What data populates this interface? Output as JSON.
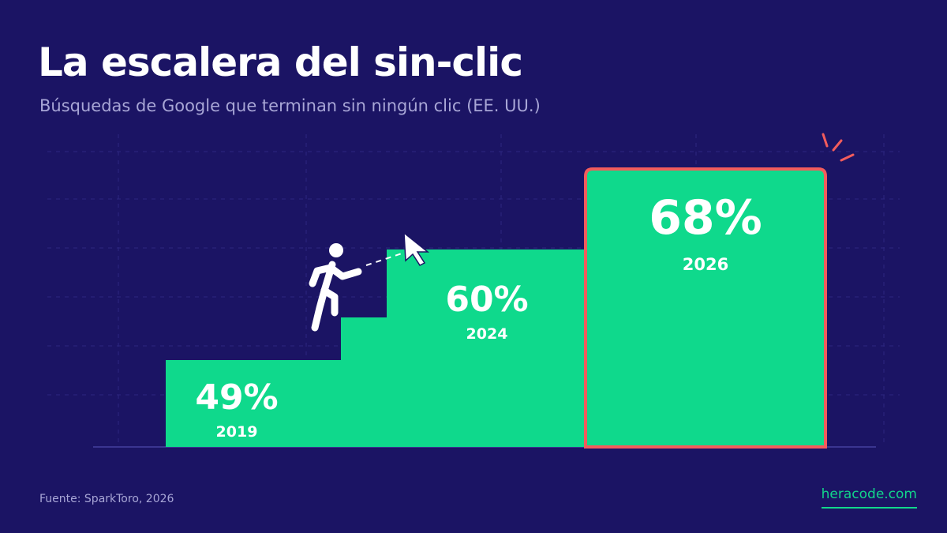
{
  "header": {
    "title": "La escalera del sin-clic",
    "subtitle": "Búsquedas de Google que terminan sin ningún clic (EE. UU.)"
  },
  "footer": {
    "source": "Fuente: SparkToro, 2026",
    "brand": "heracode.com"
  },
  "colors": {
    "background": "#1b1464",
    "bar": "#0fd98c",
    "highlight": "#f25c5c",
    "muted_text": "#a8a6d6"
  },
  "chart_data": {
    "type": "bar",
    "categories": [
      "2019",
      "2024",
      "2026"
    ],
    "values": [
      49,
      60,
      68
    ],
    "value_labels": [
      "49%",
      "60%",
      "68%"
    ],
    "highlighted_category": "2026",
    "ylim": [
      0,
      100
    ],
    "grid": true
  }
}
